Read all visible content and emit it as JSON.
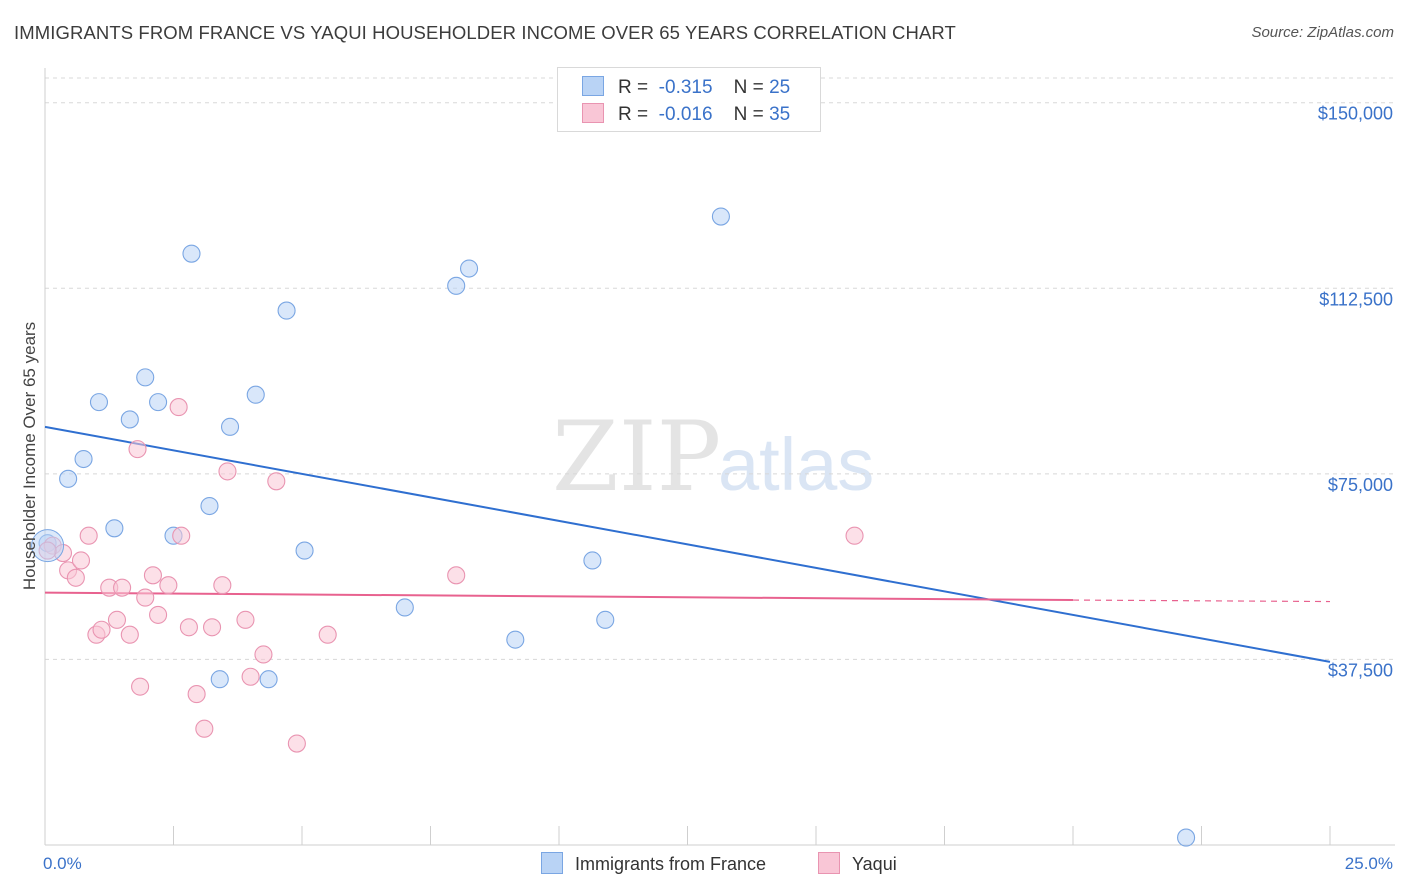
{
  "header": {
    "title": "IMMIGRANTS FROM FRANCE VS YAQUI HOUSEHOLDER INCOME OVER 65 YEARS CORRELATION CHART",
    "source": "Source: ZipAtlas.com"
  },
  "legend": {
    "rows": [
      {
        "r_label": "R =",
        "r_value": "-0.315",
        "n_label": "N =",
        "n_value": "25"
      },
      {
        "r_label": "R =",
        "r_value": "-0.016",
        "n_label": "N =",
        "n_value": "35"
      }
    ]
  },
  "bottom_legend": {
    "series1": "Immigrants from France",
    "series2": "Yaqui"
  },
  "colors": {
    "blue_fill": "#b9d3f5",
    "blue_stroke": "#7aa6e3",
    "blue_line": "#2f6fd0",
    "pink_fill": "#f9c6d6",
    "pink_stroke": "#e994b1",
    "pink_line": "#e8628f",
    "tick_text": "#3a72c9",
    "grid": "#d8d8d8"
  },
  "chart_data": {
    "type": "scatter",
    "title": "IMMIGRANTS FROM FRANCE VS YAQUI HOUSEHOLDER INCOME OVER 65 YEARS CORRELATION CHART",
    "xlabel": "",
    "ylabel": "Householder Income Over 65 years",
    "xlim": [
      0,
      25
    ],
    "ylim": [
      0,
      155000
    ],
    "x_tick_labels": [
      "0.0%",
      "25.0%"
    ],
    "y_ticks": [
      37500,
      75000,
      112500,
      150000
    ],
    "y_tick_labels": [
      "$37,500",
      "$75,000",
      "$112,500",
      "$150,000"
    ],
    "grid": "horizontal dashed",
    "legend_position": "top-center",
    "series": [
      {
        "name": "Immigrants from France",
        "color": "blue",
        "points": [
          [
            0.05,
            61000
          ],
          [
            0.45,
            74000
          ],
          [
            0.75,
            78000
          ],
          [
            1.05,
            89500
          ],
          [
            1.35,
            64000
          ],
          [
            1.65,
            86000
          ],
          [
            1.95,
            94500
          ],
          [
            2.2,
            89500
          ],
          [
            2.5,
            62500
          ],
          [
            2.85,
            119500
          ],
          [
            3.2,
            68500
          ],
          [
            3.4,
            33500
          ],
          [
            3.6,
            84500
          ],
          [
            4.1,
            91000
          ],
          [
            4.35,
            33500
          ],
          [
            4.7,
            108000
          ],
          [
            5.05,
            59500
          ],
          [
            7.0,
            48000
          ],
          [
            8.0,
            113000
          ],
          [
            8.25,
            116500
          ],
          [
            9.15,
            41500
          ],
          [
            10.65,
            57500
          ],
          [
            10.9,
            45500
          ],
          [
            13.15,
            127000
          ],
          [
            22.2,
            1500
          ]
        ],
        "trend": {
          "x": [
            0,
            25
          ],
          "y": [
            84500,
            37000
          ]
        }
      },
      {
        "name": "Yaqui",
        "color": "pink",
        "points": [
          [
            0.15,
            60500
          ],
          [
            0.35,
            59000
          ],
          [
            0.45,
            55500
          ],
          [
            0.6,
            54000
          ],
          [
            0.7,
            57500
          ],
          [
            0.85,
            62500
          ],
          [
            1.0,
            42500
          ],
          [
            1.1,
            43500
          ],
          [
            1.25,
            52000
          ],
          [
            1.4,
            45500
          ],
          [
            1.5,
            52000
          ],
          [
            1.65,
            42500
          ],
          [
            1.8,
            80000
          ],
          [
            1.85,
            32000
          ],
          [
            1.95,
            50000
          ],
          [
            2.1,
            54500
          ],
          [
            2.2,
            46500
          ],
          [
            2.4,
            52500
          ],
          [
            2.6,
            88500
          ],
          [
            2.65,
            62500
          ],
          [
            2.8,
            44000
          ],
          [
            2.95,
            30500
          ],
          [
            3.1,
            23500
          ],
          [
            3.25,
            44000
          ],
          [
            3.45,
            52500
          ],
          [
            3.55,
            75500
          ],
          [
            3.9,
            45500
          ],
          [
            4.0,
            34000
          ],
          [
            4.25,
            38500
          ],
          [
            4.5,
            73500
          ],
          [
            4.9,
            20500
          ],
          [
            5.5,
            42500
          ],
          [
            8.0,
            54500
          ],
          [
            15.75,
            62500
          ],
          [
            0.05,
            59500
          ]
        ],
        "trend": {
          "x": [
            0,
            20
          ],
          "y": [
            51000,
            49500
          ]
        },
        "trend_dashed": {
          "x": [
            20,
            25
          ],
          "y": [
            49500,
            49200
          ]
        }
      }
    ]
  }
}
